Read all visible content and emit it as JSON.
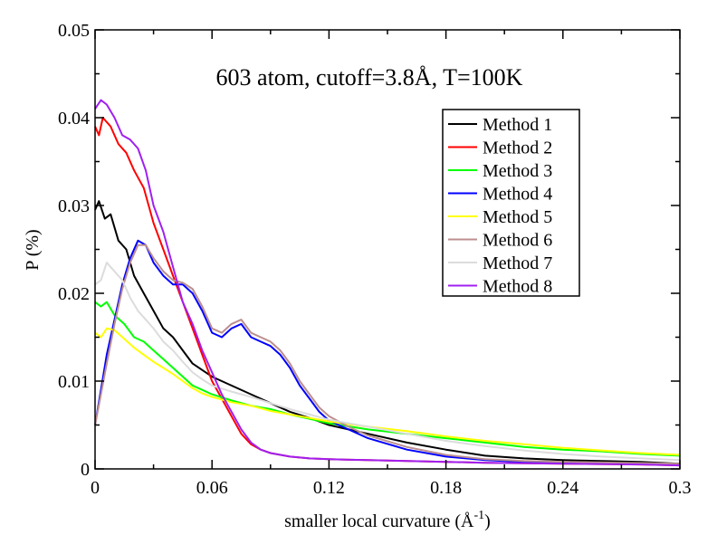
{
  "chart_data": {
    "type": "line",
    "title": "603 atom, cutoff=3.8Å, T=100K",
    "xlabel": "smaller local curvature (Å",
    "xlabel_sup": "-1",
    "xlabel_close": ")",
    "ylabel": "P (%)",
    "xlim": [
      0,
      0.3
    ],
    "ylim": [
      0,
      0.05
    ],
    "xticks": [
      0,
      0.06,
      0.12,
      0.18,
      0.24,
      0.3
    ],
    "xtick_labels": [
      "0",
      "0.06",
      "0.12",
      "0.18",
      "0.24",
      "0.3"
    ],
    "yticks": [
      0,
      0.01,
      0.02,
      0.03,
      0.04,
      0.05
    ],
    "ytick_labels": [
      "0",
      "0.01",
      "0.02",
      "0.03",
      "0.04",
      "0.05"
    ],
    "grid": false,
    "legend_position": "top-right",
    "series": [
      {
        "name": "Method 1",
        "color": "#000000",
        "points": [
          [
            0,
            0.0295
          ],
          [
            0.002,
            0.0305
          ],
          [
            0.005,
            0.0285
          ],
          [
            0.008,
            0.029
          ],
          [
            0.012,
            0.026
          ],
          [
            0.016,
            0.025
          ],
          [
            0.02,
            0.022
          ],
          [
            0.025,
            0.02
          ],
          [
            0.03,
            0.018
          ],
          [
            0.035,
            0.016
          ],
          [
            0.04,
            0.015
          ],
          [
            0.045,
            0.0135
          ],
          [
            0.05,
            0.012
          ],
          [
            0.06,
            0.0105
          ],
          [
            0.07,
            0.0095
          ],
          [
            0.08,
            0.0085
          ],
          [
            0.09,
            0.0075
          ],
          [
            0.1,
            0.0065
          ],
          [
            0.11,
            0.0058
          ],
          [
            0.12,
            0.005
          ],
          [
            0.13,
            0.0045
          ],
          [
            0.14,
            0.004
          ],
          [
            0.16,
            0.003
          ],
          [
            0.18,
            0.0022
          ],
          [
            0.2,
            0.0015
          ],
          [
            0.22,
            0.0012
          ],
          [
            0.24,
            0.001
          ],
          [
            0.26,
            0.0009
          ],
          [
            0.28,
            0.0008
          ],
          [
            0.3,
            0.0006
          ]
        ]
      },
      {
        "name": "Method 2",
        "color": "#ff0000",
        "points": [
          [
            0,
            0.039
          ],
          [
            0.002,
            0.038
          ],
          [
            0.004,
            0.04
          ],
          [
            0.008,
            0.039
          ],
          [
            0.012,
            0.037
          ],
          [
            0.016,
            0.036
          ],
          [
            0.02,
            0.034
          ],
          [
            0.025,
            0.032
          ],
          [
            0.03,
            0.028
          ],
          [
            0.035,
            0.025
          ],
          [
            0.04,
            0.022
          ],
          [
            0.045,
            0.019
          ],
          [
            0.05,
            0.016
          ],
          [
            0.055,
            0.013
          ],
          [
            0.06,
            0.01
          ],
          [
            0.065,
            0.008
          ],
          [
            0.07,
            0.006
          ],
          [
            0.075,
            0.004
          ],
          [
            0.08,
            0.0028
          ],
          [
            0.085,
            0.0022
          ],
          [
            0.09,
            0.0018
          ],
          [
            0.1,
            0.0014
          ],
          [
            0.11,
            0.0012
          ],
          [
            0.12,
            0.0011
          ],
          [
            0.14,
            0.001
          ],
          [
            0.16,
            0.0009
          ],
          [
            0.18,
            0.0008
          ],
          [
            0.2,
            0.0007
          ],
          [
            0.24,
            0.0006
          ],
          [
            0.28,
            0.0005
          ],
          [
            0.3,
            0.0004
          ]
        ]
      },
      {
        "name": "Method 3",
        "color": "#00ff00",
        "points": [
          [
            0,
            0.019
          ],
          [
            0.003,
            0.0185
          ],
          [
            0.006,
            0.019
          ],
          [
            0.01,
            0.0175
          ],
          [
            0.015,
            0.0165
          ],
          [
            0.02,
            0.015
          ],
          [
            0.025,
            0.0145
          ],
          [
            0.03,
            0.0135
          ],
          [
            0.035,
            0.0125
          ],
          [
            0.04,
            0.0115
          ],
          [
            0.045,
            0.0105
          ],
          [
            0.05,
            0.0095
          ],
          [
            0.055,
            0.009
          ],
          [
            0.06,
            0.0085
          ],
          [
            0.07,
            0.0078
          ],
          [
            0.08,
            0.0072
          ],
          [
            0.09,
            0.0068
          ],
          [
            0.1,
            0.0062
          ],
          [
            0.11,
            0.0057
          ],
          [
            0.12,
            0.0052
          ],
          [
            0.14,
            0.0045
          ],
          [
            0.16,
            0.004
          ],
          [
            0.18,
            0.0035
          ],
          [
            0.2,
            0.003
          ],
          [
            0.22,
            0.0025
          ],
          [
            0.24,
            0.0022
          ],
          [
            0.26,
            0.002
          ],
          [
            0.28,
            0.0017
          ],
          [
            0.3,
            0.0015
          ]
        ]
      },
      {
        "name": "Method 4",
        "color": "#0000ff",
        "points": [
          [
            0,
            0.005
          ],
          [
            0.003,
            0.009
          ],
          [
            0.006,
            0.013
          ],
          [
            0.01,
            0.017
          ],
          [
            0.014,
            0.021
          ],
          [
            0.018,
            0.024
          ],
          [
            0.022,
            0.026
          ],
          [
            0.026,
            0.0255
          ],
          [
            0.03,
            0.0235
          ],
          [
            0.035,
            0.022
          ],
          [
            0.04,
            0.021
          ],
          [
            0.045,
            0.021
          ],
          [
            0.05,
            0.02
          ],
          [
            0.055,
            0.018
          ],
          [
            0.06,
            0.0155
          ],
          [
            0.065,
            0.015
          ],
          [
            0.07,
            0.016
          ],
          [
            0.075,
            0.0165
          ],
          [
            0.08,
            0.015
          ],
          [
            0.085,
            0.0145
          ],
          [
            0.09,
            0.014
          ],
          [
            0.095,
            0.013
          ],
          [
            0.1,
            0.0115
          ],
          [
            0.105,
            0.0095
          ],
          [
            0.11,
            0.008
          ],
          [
            0.115,
            0.0065
          ],
          [
            0.12,
            0.0055
          ],
          [
            0.13,
            0.0045
          ],
          [
            0.14,
            0.0035
          ],
          [
            0.16,
            0.0022
          ],
          [
            0.18,
            0.0014
          ],
          [
            0.2,
            0.001
          ],
          [
            0.22,
            0.0008
          ],
          [
            0.24,
            0.0007
          ],
          [
            0.27,
            0.0006
          ],
          [
            0.3,
            0.0005
          ]
        ]
      },
      {
        "name": "Method 5",
        "color": "#ffff00",
        "points": [
          [
            0,
            0.0155
          ],
          [
            0.003,
            0.015
          ],
          [
            0.006,
            0.016
          ],
          [
            0.01,
            0.0158
          ],
          [
            0.015,
            0.0148
          ],
          [
            0.02,
            0.0138
          ],
          [
            0.025,
            0.013
          ],
          [
            0.03,
            0.0122
          ],
          [
            0.035,
            0.0115
          ],
          [
            0.04,
            0.0108
          ],
          [
            0.045,
            0.01
          ],
          [
            0.05,
            0.0092
          ],
          [
            0.055,
            0.0086
          ],
          [
            0.06,
            0.0082
          ],
          [
            0.07,
            0.0076
          ],
          [
            0.08,
            0.0072
          ],
          [
            0.09,
            0.0066
          ],
          [
            0.1,
            0.0062
          ],
          [
            0.11,
            0.0058
          ],
          [
            0.12,
            0.0054
          ],
          [
            0.14,
            0.0048
          ],
          [
            0.16,
            0.0043
          ],
          [
            0.18,
            0.0037
          ],
          [
            0.2,
            0.0032
          ],
          [
            0.22,
            0.0028
          ],
          [
            0.24,
            0.0024
          ],
          [
            0.26,
            0.0021
          ],
          [
            0.28,
            0.0018
          ],
          [
            0.3,
            0.0016
          ]
        ]
      },
      {
        "name": "Method 6",
        "color": "#bc8f8f",
        "points": [
          [
            0,
            0.005
          ],
          [
            0.003,
            0.0085
          ],
          [
            0.006,
            0.012
          ],
          [
            0.01,
            0.0165
          ],
          [
            0.014,
            0.0205
          ],
          [
            0.018,
            0.0235
          ],
          [
            0.022,
            0.0255
          ],
          [
            0.026,
            0.0255
          ],
          [
            0.03,
            0.024
          ],
          [
            0.035,
            0.0225
          ],
          [
            0.04,
            0.0215
          ],
          [
            0.045,
            0.0212
          ],
          [
            0.05,
            0.0205
          ],
          [
            0.055,
            0.0185
          ],
          [
            0.06,
            0.016
          ],
          [
            0.065,
            0.0155
          ],
          [
            0.07,
            0.0165
          ],
          [
            0.075,
            0.017
          ],
          [
            0.08,
            0.0155
          ],
          [
            0.085,
            0.015
          ],
          [
            0.09,
            0.0145
          ],
          [
            0.095,
            0.0135
          ],
          [
            0.1,
            0.012
          ],
          [
            0.105,
            0.01
          ],
          [
            0.11,
            0.0085
          ],
          [
            0.115,
            0.007
          ],
          [
            0.12,
            0.006
          ],
          [
            0.13,
            0.0048
          ],
          [
            0.14,
            0.0038
          ],
          [
            0.16,
            0.0025
          ],
          [
            0.18,
            0.0016
          ],
          [
            0.2,
            0.0011
          ],
          [
            0.22,
            0.0009
          ],
          [
            0.24,
            0.0008
          ],
          [
            0.27,
            0.0007
          ],
          [
            0.3,
            0.0006
          ]
        ]
      },
      {
        "name": "Method 7",
        "color": "#dcdcdc",
        "points": [
          [
            0,
            0.021
          ],
          [
            0.003,
            0.0215
          ],
          [
            0.006,
            0.0235
          ],
          [
            0.01,
            0.0225
          ],
          [
            0.014,
            0.0215
          ],
          [
            0.018,
            0.0195
          ],
          [
            0.022,
            0.018
          ],
          [
            0.026,
            0.017
          ],
          [
            0.03,
            0.016
          ],
          [
            0.035,
            0.0145
          ],
          [
            0.04,
            0.0135
          ],
          [
            0.045,
            0.0122
          ],
          [
            0.05,
            0.011
          ],
          [
            0.055,
            0.0102
          ],
          [
            0.06,
            0.0095
          ],
          [
            0.07,
            0.0088
          ],
          [
            0.08,
            0.0082
          ],
          [
            0.09,
            0.0075
          ],
          [
            0.1,
            0.0068
          ],
          [
            0.11,
            0.0062
          ],
          [
            0.12,
            0.0056
          ],
          [
            0.14,
            0.0048
          ],
          [
            0.16,
            0.004
          ],
          [
            0.18,
            0.0032
          ],
          [
            0.2,
            0.0026
          ],
          [
            0.22,
            0.0021
          ],
          [
            0.24,
            0.0017
          ],
          [
            0.26,
            0.0014
          ],
          [
            0.28,
            0.0012
          ],
          [
            0.3,
            0.001
          ]
        ]
      },
      {
        "name": "Method 8",
        "color": "#a020f0",
        "points": [
          [
            0,
            0.041
          ],
          [
            0.003,
            0.042
          ],
          [
            0.006,
            0.0415
          ],
          [
            0.01,
            0.04
          ],
          [
            0.014,
            0.038
          ],
          [
            0.018,
            0.0375
          ],
          [
            0.022,
            0.0365
          ],
          [
            0.026,
            0.034
          ],
          [
            0.03,
            0.03
          ],
          [
            0.035,
            0.027
          ],
          [
            0.04,
            0.023
          ],
          [
            0.045,
            0.019
          ],
          [
            0.05,
            0.0165
          ],
          [
            0.055,
            0.0135
          ],
          [
            0.06,
            0.011
          ],
          [
            0.065,
            0.0085
          ],
          [
            0.07,
            0.0065
          ],
          [
            0.075,
            0.0045
          ],
          [
            0.08,
            0.003
          ],
          [
            0.085,
            0.0022
          ],
          [
            0.09,
            0.0018
          ],
          [
            0.1,
            0.0014
          ],
          [
            0.11,
            0.0012
          ],
          [
            0.12,
            0.0011
          ],
          [
            0.14,
            0.001
          ],
          [
            0.16,
            0.0009
          ],
          [
            0.18,
            0.0008
          ],
          [
            0.2,
            0.0007
          ],
          [
            0.24,
            0.0006
          ],
          [
            0.28,
            0.0005
          ],
          [
            0.3,
            0.0004
          ]
        ]
      }
    ]
  }
}
